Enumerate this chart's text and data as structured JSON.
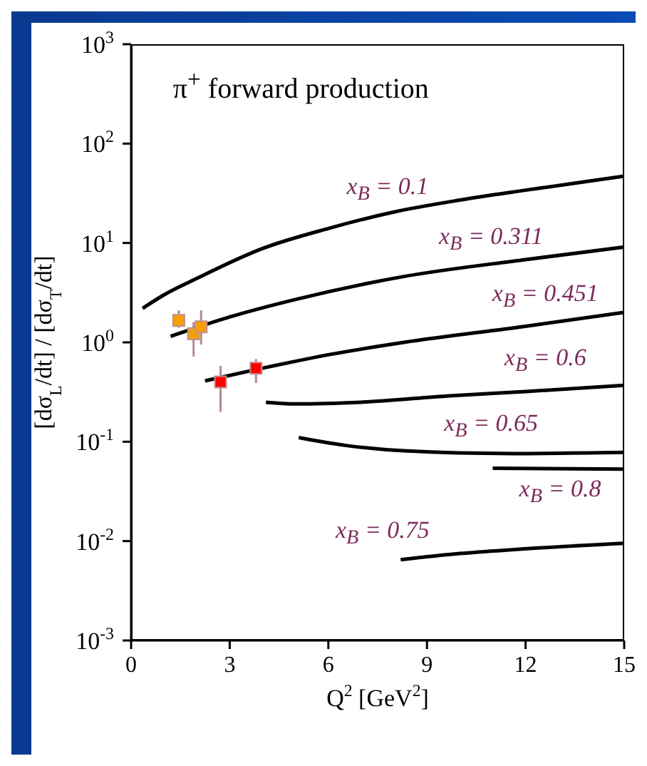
{
  "chart_data": {
    "type": "line",
    "title": "π$^{+}$ forward production",
    "xlabel": "Q$^{2}$ [GeV$^{2}$]",
    "ylabel": "[dσ$_{L}$/dt] / [dσ$_{T}$/dt]",
    "log": "y",
    "grid": false,
    "legend": false,
    "marker": "none",
    "line_style": "solid",
    "xlim": [
      0,
      15
    ],
    "xticks": [
      0,
      3,
      6,
      9,
      12,
      15
    ],
    "ylim": [
      0.001,
      1000
    ],
    "yticks": [
      {
        "value": 0.001,
        "label": "10$^{-3}$"
      },
      {
        "value": 0.01,
        "label": "10$^{-2}$"
      },
      {
        "value": 0.1,
        "label": "10$^{-1}$"
      },
      {
        "value": 1,
        "label": "10$^{0}$"
      },
      {
        "value": 10,
        "label": "10$^{1}$"
      },
      {
        "value": 100,
        "label": "10$^{2}$"
      },
      {
        "value": 1000,
        "label": "10$^{3}$"
      }
    ],
    "series": [
      {
        "name": "x$_{B}$ = 0.1",
        "color": "#000000",
        "x": [
          0.35,
          1,
          2,
          4,
          6,
          8,
          10,
          12,
          15
        ],
        "values": [
          2.2,
          3.0,
          4.4,
          8.8,
          14,
          20.5,
          27,
          34,
          47
        ]
      },
      {
        "name": "x$_{B}$ = 0.311",
        "color": "#000000",
        "x": [
          1.2,
          3,
          5,
          8.3,
          12,
          15
        ],
        "values": [
          1.15,
          1.8,
          2.7,
          4.6,
          6.8,
          9.1
        ]
      },
      {
        "name": "x$_{B}$ = 0.451",
        "color": "#000000",
        "x": [
          2.25,
          4,
          6,
          8.3,
          12,
          15
        ],
        "values": [
          0.41,
          0.55,
          0.75,
          1.0,
          1.45,
          2.0
        ]
      },
      {
        "name": "x$_{B}$ = 0.6",
        "color": "#000000",
        "x": [
          4.1,
          5,
          7,
          9.7,
          12,
          15
        ],
        "values": [
          0.25,
          0.24,
          0.25,
          0.29,
          0.32,
          0.37
        ]
      },
      {
        "name": "x$_{B}$ = 0.65",
        "color": "#000000",
        "x": [
          5.1,
          6.5,
          8.3,
          11.6,
          15
        ],
        "values": [
          0.11,
          0.092,
          0.081,
          0.076,
          0.078
        ]
      },
      {
        "name": "x$_{B}$ = 0.8",
        "color": "#000000",
        "x": [
          11,
          15
        ],
        "values": [
          0.054,
          0.053
        ]
      },
      {
        "name": "x$_{B}$ = 0.75",
        "color": "#000000",
        "x": [
          8.2,
          10,
          11.6,
          15
        ],
        "values": [
          0.0065,
          0.0075,
          0.0082,
          0.0095
        ]
      },
      {
        "type": "scatter",
        "marker": "square",
        "color": "#f5a000",
        "x": [
          1.45,
          1.9,
          2.13
        ],
        "values": [
          1.66,
          1.22,
          1.43
        ],
        "errors": [
          [
            1.4,
            2.1
          ],
          [
            0.72,
            1.6
          ],
          [
            0.95,
            2.1
          ]
        ]
      },
      {
        "type": "scatter",
        "marker": "square",
        "color": "#ff0000",
        "x": [
          2.72,
          3.8
        ],
        "values": [
          0.4,
          0.55
        ],
        "errors": [
          [
            0.2,
            0.58
          ],
          [
            0.39,
            0.68
          ]
        ]
      }
    ]
  }
}
